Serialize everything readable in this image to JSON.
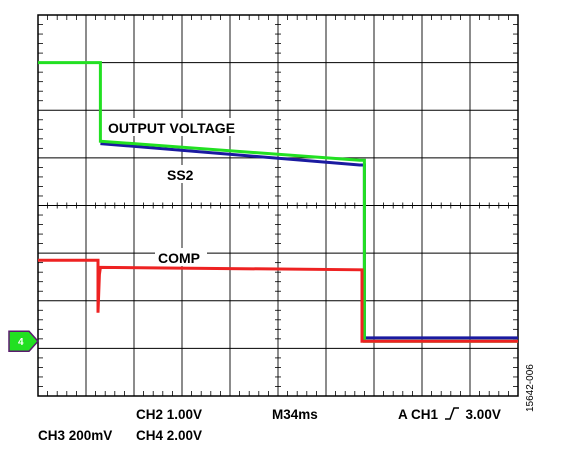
{
  "chart_data": {
    "type": "line",
    "title": "",
    "xlabel": "",
    "ylabel": "",
    "grid": true,
    "divisions": {
      "x": 10,
      "y": 8
    },
    "ylim": [
      -4,
      4
    ],
    "xlim": [
      0,
      10
    ],
    "series": [
      {
        "name": "OUTPUT VOLTAGE",
        "color": "#22e022",
        "x": [
          0,
          1.3,
          1.3,
          6.7,
          6.8,
          6.8,
          10
        ],
        "y": [
          3.0,
          3.0,
          1.35,
          0.95,
          0.95,
          -2.85,
          -2.85
        ]
      },
      {
        "name": "SS2",
        "color": "#1a1aa0",
        "x": [
          1.3,
          6.7,
          6.8,
          6.8,
          10
        ],
        "y": [
          1.3,
          0.85,
          0.85,
          -2.78,
          -2.78
        ]
      },
      {
        "name": "COMP",
        "color": "#ee2222",
        "x": [
          0,
          1.25,
          1.25,
          1.28,
          1.3,
          1.32,
          1.32,
          6.75,
          6.75,
          10
        ],
        "y": [
          -1.15,
          -1.15,
          -2.25,
          -1.45,
          -1.3,
          -1.3,
          -1.3,
          -1.35,
          -2.85,
          -2.85
        ]
      }
    ],
    "ground_marker": {
      "channel": "4",
      "color": "#22e022",
      "y": -2.85
    },
    "annotations": {
      "output_voltage": "OUTPUT VOLTAGE",
      "ss2": "SS2",
      "comp": "COMP"
    }
  },
  "footer": {
    "ch2": "CH2  1.00V",
    "timebase": "M34ms",
    "trigger_prefix": "A  CH1",
    "trigger_level": "3.00V",
    "ch3": "CH3  200mV",
    "ch4": "CH4  2.00V"
  },
  "figure_id": "15642-006"
}
